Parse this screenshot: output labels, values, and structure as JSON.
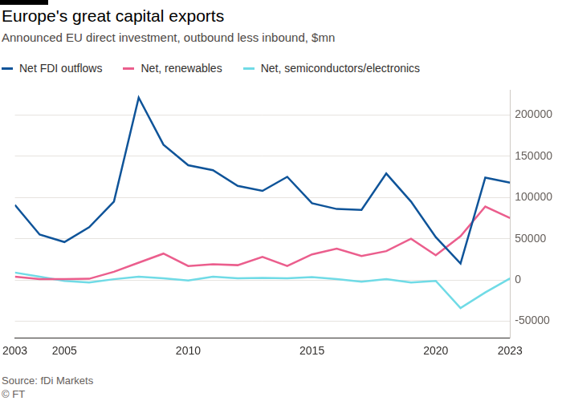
{
  "chart_data": {
    "type": "line",
    "title": "Europe's great capital exports",
    "subtitle": "Announced EU direct investment, outbound less inbound, $mn",
    "footer": [
      "Source: fDi Markets",
      "© FT"
    ],
    "x": [
      2003,
      2004,
      2005,
      2006,
      2007,
      2008,
      2009,
      2010,
      2011,
      2012,
      2013,
      2014,
      2015,
      2016,
      2017,
      2018,
      2019,
      2020,
      2021,
      2022,
      2023
    ],
    "series": [
      {
        "name": "Net FDI outflows",
        "color": "#0f5499",
        "values": [
          91000,
          55000,
          46000,
          64000,
          95000,
          221000,
          164000,
          139000,
          133000,
          114000,
          108000,
          125000,
          93000,
          86000,
          85000,
          129000,
          95000,
          52000,
          20000,
          124000,
          118000
        ]
      },
      {
        "name": "Net, renewables",
        "color": "#eb5e8d",
        "values": [
          4000,
          1000,
          1000,
          1500,
          10000,
          21000,
          32000,
          17000,
          19000,
          18000,
          28000,
          17000,
          31000,
          38000,
          29000,
          35000,
          50000,
          30000,
          53000,
          89000,
          75000
        ]
      },
      {
        "name": "Net, semiconductors/electronics",
        "color": "#70dbe6",
        "values": [
          9000,
          4000,
          -1000,
          -3000,
          1000,
          4000,
          2000,
          -500,
          4000,
          2000,
          2500,
          2000,
          3500,
          1000,
          -2000,
          1000,
          -3000,
          -1000,
          -34000,
          -15000,
          2000
        ]
      }
    ],
    "xlim": [
      2003,
      2023
    ],
    "xticks": [
      2003,
      2005,
      2010,
      2015,
      2020,
      2023
    ],
    "ylim": [
      -70000,
      230000
    ],
    "yticks": [
      -50000,
      0,
      50000,
      100000,
      150000,
      200000
    ],
    "grid": true,
    "legend": "top-left"
  }
}
